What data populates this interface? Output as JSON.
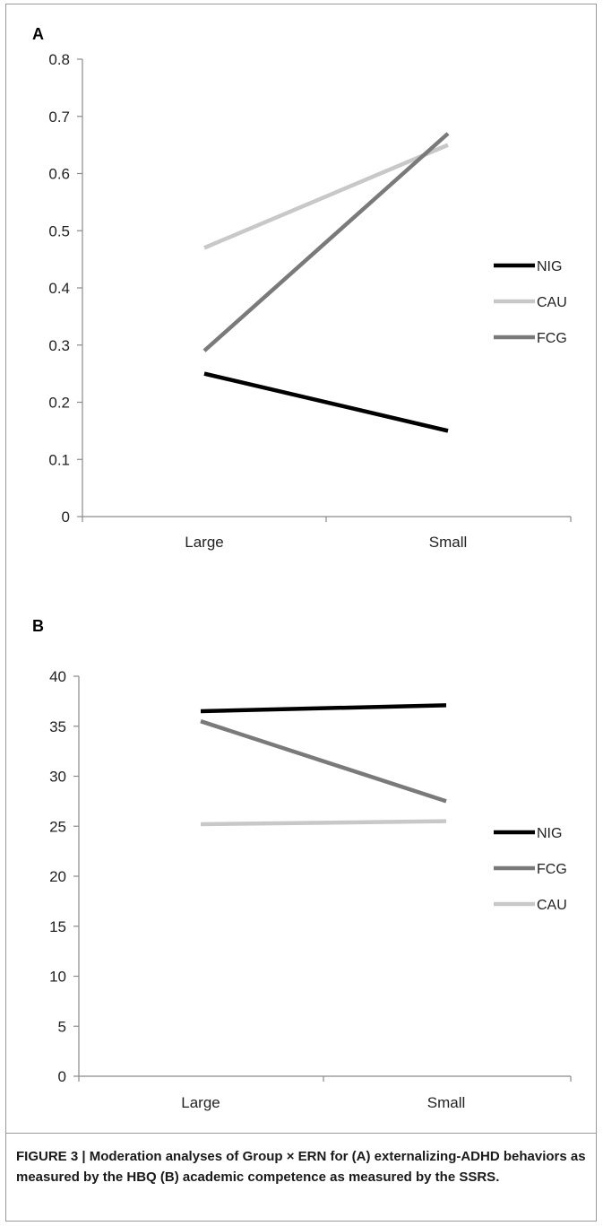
{
  "caption": "FIGURE 3 | Moderation analyses of Group × ERN for (A) externalizing-ADHD behaviors as measured by the HBQ (B) academic competence as measured by the SSRS.",
  "chart_data": [
    {
      "type": "line",
      "panel_label": "A",
      "categories": [
        "Large",
        "Small"
      ],
      "yticks": [
        "0",
        "0.1",
        "0.2",
        "0.3",
        "0.4",
        "0.5",
        "0.6",
        "0.7",
        "0.8"
      ],
      "ylim": [
        0,
        0.8
      ],
      "legend_position": "right",
      "series": [
        {
          "name": "NIG",
          "values": [
            0.25,
            0.15
          ],
          "color": "#000000"
        },
        {
          "name": "CAU",
          "values": [
            0.47,
            0.65
          ],
          "color": "#c8c8c8"
        },
        {
          "name": "FCG",
          "values": [
            0.29,
            0.67
          ],
          "color": "#7a7a7a"
        }
      ]
    },
    {
      "type": "line",
      "panel_label": "B",
      "categories": [
        "Large",
        "Small"
      ],
      "yticks": [
        "0",
        "5",
        "10",
        "15",
        "20",
        "25",
        "30",
        "35",
        "40"
      ],
      "ylim": [
        0,
        40
      ],
      "legend_position": "right",
      "series": [
        {
          "name": "NIG",
          "values": [
            36.5,
            37.1
          ],
          "color": "#000000"
        },
        {
          "name": "FCG",
          "values": [
            35.5,
            27.5
          ],
          "color": "#7a7a7a"
        },
        {
          "name": "CAU",
          "values": [
            25.2,
            25.5
          ],
          "color": "#c8c8c8"
        }
      ]
    }
  ]
}
